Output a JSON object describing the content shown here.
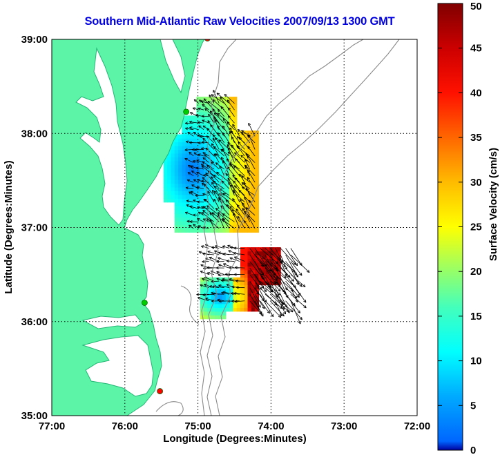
{
  "title": "Southern Mid-Atlantic Raw Velocities 2007/09/13 1300 GMT",
  "map": {
    "xlabel": "Longitude (Degrees:Minutes)",
    "ylabel": "Latitude (Degrees:Minutes)",
    "lon_range": [
      -77,
      -72
    ],
    "lat_range": [
      35,
      39
    ],
    "lon_ticks": [
      {
        "value": -77,
        "label": "77:00"
      },
      {
        "value": -76,
        "label": "76:00"
      },
      {
        "value": -75,
        "label": "75:00"
      },
      {
        "value": -74,
        "label": "74:00"
      },
      {
        "value": -73,
        "label": "73:00"
      },
      {
        "value": -72,
        "label": "72:00"
      }
    ],
    "lat_ticks": [
      {
        "value": 35,
        "label": "35:00"
      },
      {
        "value": 36,
        "label": "36:00"
      },
      {
        "value": 37,
        "label": "37:00"
      },
      {
        "value": 38,
        "label": "38:00"
      },
      {
        "value": 39,
        "label": "39:00"
      }
    ],
    "grid": "dotted",
    "colors": {
      "land": "#5cf5a8",
      "land_edge": "#20b870",
      "bathymetry": "#8a8a8a",
      "station_green": "#00cc00",
      "station_red": "#ff0000",
      "vector": "#000000"
    },
    "stations": [
      {
        "lon": -74.87,
        "lat": 39.01,
        "status": "red"
      },
      {
        "lon": -75.16,
        "lat": 38.23,
        "status": "green"
      },
      {
        "lon": -75.73,
        "lat": 36.2,
        "status": "green"
      },
      {
        "lon": -75.52,
        "lat": 35.26,
        "status": "red"
      }
    ]
  },
  "colorbar": {
    "label": "Surface Velocity (cm/s)",
    "min": 0,
    "max": 50,
    "ticks": [
      0,
      5,
      10,
      15,
      20,
      25,
      30,
      35,
      40,
      45,
      50
    ],
    "colormap": "jet"
  }
}
